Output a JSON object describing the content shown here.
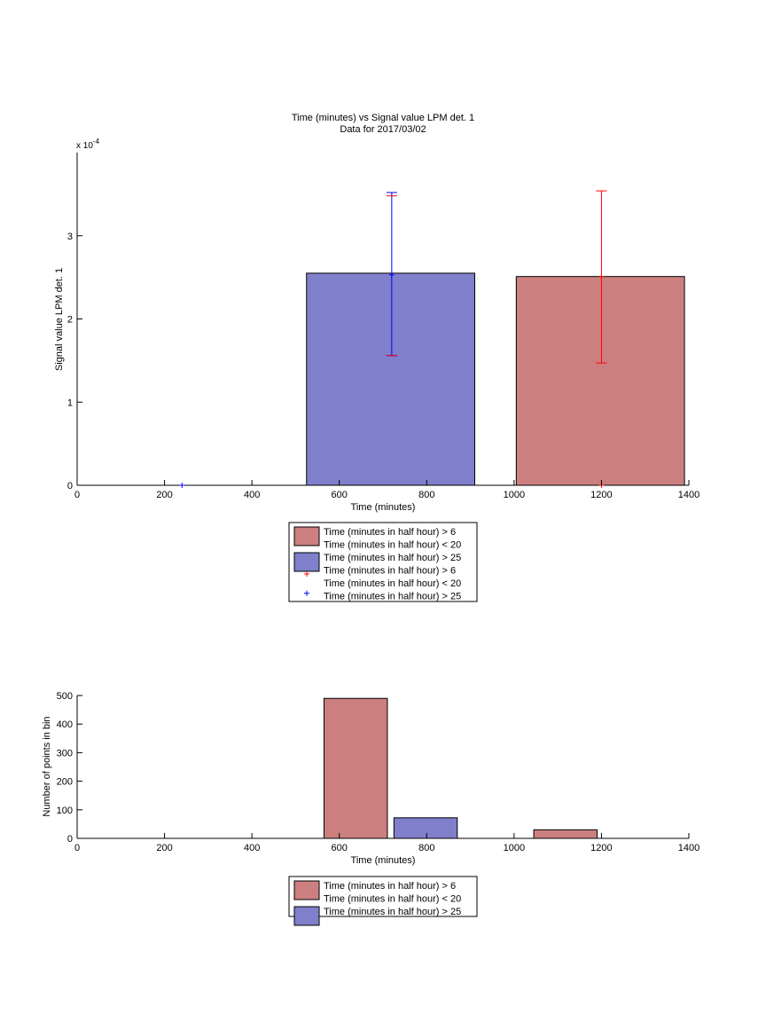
{
  "chart_data": [
    {
      "type": "bar",
      "title": "Time (minutes) vs Signal value LPM det. 1",
      "subtitle": "Data for 2017/03/02",
      "xlabel": "Time (minutes)",
      "ylabel": "Signal value LPM det. 1",
      "y_exponent_label": "x 10",
      "y_exponent_power": "-4",
      "xlim": [
        0,
        1400
      ],
      "ylim": [
        0,
        4
      ],
      "xticks": [
        0,
        200,
        400,
        600,
        800,
        1000,
        1200,
        1400
      ],
      "yticks": [
        0,
        1,
        2,
        3
      ],
      "grid": false,
      "legend_position": "bottom (below axes)",
      "legend": [
        {
          "kind": "patch",
          "color": "#cc7f7f",
          "lines": [
            "Time (minutes in half hour) > 6",
            "Time (minutes in half hour) < 20"
          ]
        },
        {
          "kind": "patch",
          "color": "#7f7fcc",
          "lines": [
            "Time (minutes in half hour) > 25"
          ]
        },
        {
          "kind": "marker",
          "color": "#ff0000",
          "lines": [
            "Time (minutes in half hour) > 6",
            "Time (minutes in half hour) < 20"
          ]
        },
        {
          "kind": "marker",
          "color": "#0000ff",
          "lines": [
            "Time (minutes in half hour) > 25"
          ]
        }
      ],
      "bars": [
        {
          "series": 1,
          "color": "#7f7fcc",
          "x_start": 525,
          "x_end": 910,
          "value": 2.55
        },
        {
          "series": 0,
          "color": "#cc7f7f",
          "x_start": 1005,
          "x_end": 1390,
          "value": 2.51
        }
      ],
      "errorbars": [
        {
          "series": 1,
          "color": "#0000ff",
          "x": 720,
          "y": 2.53,
          "low": 1.56,
          "high": 3.52
        },
        {
          "series": 0,
          "color": "#ff0000",
          "x": 1200,
          "y": 2.51,
          "low": 1.47,
          "high": 3.54
        },
        {
          "series": 1,
          "color": "#0000ff",
          "x": 240,
          "y": 0,
          "low": 0,
          "high": 0
        },
        {
          "series": 0,
          "color": "#ff0000",
          "x": 1200,
          "y": 0,
          "low": 0,
          "high": 0
        }
      ],
      "extra_caps": [
        {
          "color": "#ff0000",
          "x": 720,
          "y": 3.48
        },
        {
          "color": "#ff0000",
          "x": 720,
          "y": 1.56
        }
      ]
    },
    {
      "type": "bar",
      "title": "",
      "xlabel": "Time (minutes)",
      "ylabel": "Number of points in bin",
      "xlim": [
        0,
        1400
      ],
      "ylim": [
        0,
        500
      ],
      "xticks": [
        0,
        200,
        400,
        600,
        800,
        1000,
        1200,
        1400
      ],
      "yticks": [
        0,
        100,
        200,
        300,
        400,
        500
      ],
      "grid": false,
      "legend_position": "bottom (below axes)",
      "legend": [
        {
          "kind": "patch",
          "color": "#cc7f7f",
          "lines": [
            "Time (minutes in half hour) > 6",
            "Time (minutes in half hour) < 20"
          ]
        },
        {
          "kind": "patch",
          "color": "#7f7fcc",
          "lines": [
            "Time (minutes in half hour) > 25"
          ]
        }
      ],
      "bars": [
        {
          "series": 0,
          "color": "#cc7f7f",
          "x_start": 565,
          "x_end": 710,
          "value": 490
        },
        {
          "series": 1,
          "color": "#7f7fcc",
          "x_start": 725,
          "x_end": 870,
          "value": 72
        },
        {
          "series": 0,
          "color": "#cc7f7f",
          "x_start": 1045,
          "x_end": 1190,
          "value": 30
        }
      ],
      "errorbars": [],
      "extra_caps": []
    }
  ]
}
